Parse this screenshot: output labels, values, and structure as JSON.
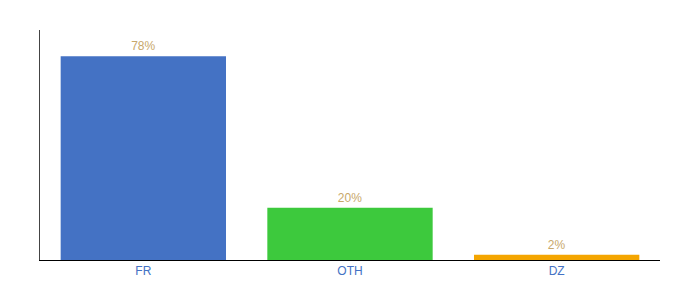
{
  "chart_data": {
    "type": "bar",
    "categories": [
      "FR",
      "OTH",
      "DZ"
    ],
    "values": [
      78,
      20,
      2
    ],
    "value_labels": [
      "78%",
      "20%",
      "2%"
    ],
    "colors": [
      "#4472c4",
      "#3dc93d",
      "#f4a500"
    ],
    "ylim": [
      0,
      88
    ],
    "data_labels": true,
    "tick_labels": "x",
    "grid": false
  }
}
